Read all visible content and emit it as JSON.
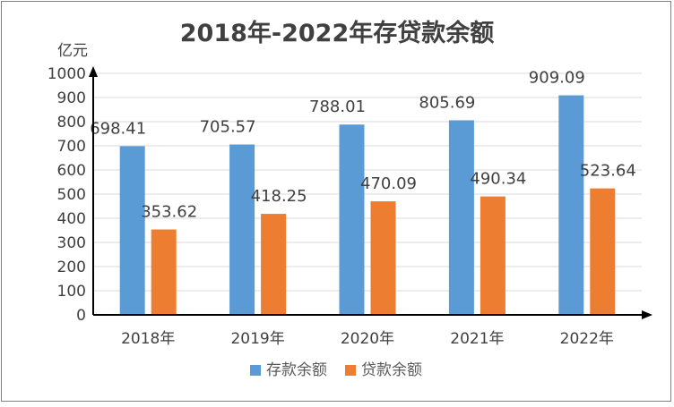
{
  "chart_data": {
    "type": "bar",
    "title": "2018年-2022年存贷款余额",
    "ylabel": "亿元",
    "xlabel": "",
    "categories": [
      "2018年",
      "2019年",
      "2020年",
      "2021年",
      "2022年"
    ],
    "series": [
      {
        "name": "存款余额",
        "color": "#5B9BD5",
        "values": [
          698.41,
          705.57,
          788.01,
          805.69,
          909.09
        ]
      },
      {
        "name": "贷款余额",
        "color": "#ED7D31",
        "values": [
          353.62,
          418.25,
          470.09,
          490.34,
          523.64
        ]
      }
    ],
    "ylim": [
      0,
      1000
    ],
    "yticks": [
      0,
      100,
      200,
      300,
      400,
      500,
      600,
      700,
      800,
      900,
      1000
    ],
    "grid": true,
    "legend": "bottom",
    "data_labels": [
      [
        "698.41",
        "705.57",
        "788.01",
        "805.69",
        "909.09"
      ],
      [
        "353.62",
        "418.25",
        "470.09",
        "490.34",
        "523.64"
      ]
    ]
  }
}
